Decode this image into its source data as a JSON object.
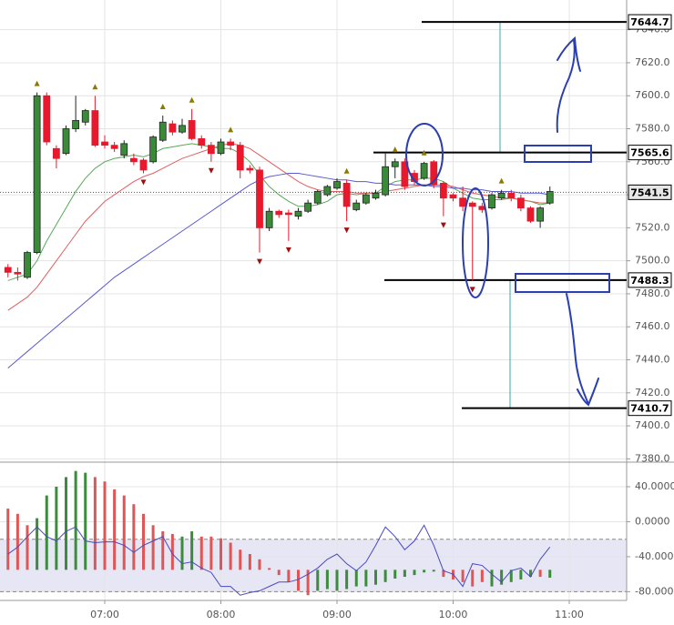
{
  "chart_data": {
    "type": "candlestick",
    "categories": [
      null,
      null,
      null,
      null,
      null,
      null,
      null,
      null,
      null,
      null,
      "07:00",
      null,
      null,
      null,
      null,
      null,
      null,
      null,
      null,
      null,
      null,
      null,
      "08:00",
      null,
      null,
      null,
      null,
      null,
      null,
      null,
      null,
      null,
      null,
      null,
      "09:00",
      null,
      null,
      null,
      null,
      null,
      null,
      null,
      null,
      null,
      null,
      null,
      "10:00",
      null,
      null,
      null,
      null,
      null,
      null,
      null,
      null,
      null,
      null,
      null,
      "11:00"
    ],
    "open": [
      7496,
      7493,
      7490,
      7505,
      7600,
      7568,
      7565,
      7580,
      7584,
      7591,
      7572,
      7570,
      7564,
      7562,
      7561,
      7560,
      7573,
      7583,
      7578,
      7585,
      7574,
      7570,
      7565,
      7572,
      7570,
      7556,
      7555,
      7520,
      7530,
      7529,
      7527,
      7530,
      7535,
      7540,
      7544,
      7547,
      7531,
      7535,
      7538,
      7540,
      7557,
      7560,
      7553,
      7550,
      7560,
      7547,
      7540,
      7538,
      7535,
      7533,
      7532,
      7538,
      7541,
      7538,
      7532,
      7524,
      7535,
      null,
      null
    ],
    "high": [
      7498,
      7496,
      7506,
      7602,
      7602,
      7570,
      7582,
      7600,
      7592,
      7600,
      7576,
      7572,
      7573,
      7565,
      7562,
      7576,
      7588,
      7585,
      7586,
      7592,
      7576,
      7572,
      7574,
      7574,
      7572,
      7558,
      7557,
      7532,
      7531,
      7531,
      7532,
      7537,
      7543,
      7546,
      7550,
      7549,
      7537,
      7541,
      7543,
      7565,
      7562,
      7562,
      7555,
      7560,
      7561,
      7548,
      7541,
      7545,
      7536,
      7535,
      7541,
      7543,
      7543,
      7540,
      7533,
      7533,
      7545,
      null,
      null
    ],
    "low": [
      7490,
      7488,
      7489,
      7504,
      7570,
      7556,
      7564,
      7578,
      7582,
      7569,
      7568,
      7566,
      7562,
      7558,
      7553,
      7559,
      7572,
      7576,
      7577,
      7573,
      7568,
      7560,
      7564,
      7567,
      7550,
      7553,
      7505,
      7518,
      7526,
      7512,
      7525,
      7529,
      7534,
      7539,
      7543,
      7524,
      7530,
      7534,
      7537,
      7539,
      7550,
      7543,
      7546,
      7549,
      7544,
      7527,
      7536,
      7530,
      7488,
      7529,
      7531,
      7537,
      7536,
      7530,
      7523,
      7520,
      7534,
      null,
      null
    ],
    "close": [
      7493,
      7492,
      7505,
      7600,
      7572,
      7562,
      7580,
      7585,
      7591,
      7570,
      7570,
      7568,
      7571,
      7560,
      7555,
      7575,
      7584,
      7578,
      7582,
      7574,
      7570,
      7565,
      7572,
      7570,
      7555,
      7555,
      7520,
      7530,
      7528,
      7528,
      7530,
      7535,
      7542,
      7545,
      7548,
      7533,
      7535,
      7540,
      7541,
      7557,
      7560,
      7545,
      7548,
      7559,
      7546,
      7538,
      7538,
      7533,
      7533,
      7531,
      7540,
      7541,
      7538,
      7532,
      7524,
      7532,
      7542,
      null,
      null
    ],
    "up_color": "#3a8a3a",
    "down_color": "#e8192c",
    "fractal_up": [
      3,
      9,
      16,
      19,
      23,
      35,
      40,
      43,
      51
    ],
    "fractal_down": [
      14,
      21,
      26,
      29,
      35,
      45,
      48
    ],
    "series": [
      {
        "color": "#5aa85a",
        "values": [
          7488,
          7490,
          7492,
          7500,
          7512,
          7522,
          7532,
          7542,
          7550,
          7556,
          7560,
          7562,
          7563,
          7564,
          7563,
          7565,
          7568,
          7569,
          7570,
          7571,
          7570,
          7569,
          7568,
          7568,
          7565,
          7560,
          7552,
          7545,
          7540,
          7536,
          7533,
          7533,
          7534,
          7536,
          7540,
          7541,
          7540,
          7541,
          7541,
          7545,
          7548,
          7549,
          7549,
          7550,
          7550,
          7548,
          7544,
          7541,
          7538,
          7537,
          7537,
          7537,
          7538,
          7537,
          7536,
          7534,
          7535,
          null,
          null
        ]
      },
      {
        "color": "#e06060",
        "values": [
          7470,
          7474,
          7478,
          7484,
          7492,
          7500,
          7508,
          7516,
          7524,
          7530,
          7536,
          7540,
          7544,
          7548,
          7551,
          7553,
          7556,
          7559,
          7562,
          7564,
          7566,
          7568,
          7570,
          7571,
          7570,
          7568,
          7564,
          7560,
          7556,
          7552,
          7548,
          7545,
          7543,
          7542,
          7542,
          7542,
          7541,
          7541,
          7541,
          7542,
          7543,
          7544,
          7545,
          7546,
          7546,
          7546,
          7545,
          7543,
          7541,
          7540,
          7539,
          7538,
          7538,
          7537,
          7536,
          7535,
          7535,
          null,
          null
        ]
      },
      {
        "color": "#5a5ad0",
        "values": [
          7435,
          7440,
          7445,
          7450,
          7455,
          7460,
          7465,
          7470,
          7475,
          7480,
          7485,
          7490,
          7494,
          7498,
          7502,
          7506,
          7510,
          7514,
          7518,
          7522,
          7526,
          7530,
          7534,
          7538,
          7542,
          7546,
          7549,
          7551,
          7552,
          7553,
          7553,
          7552,
          7551,
          7550,
          7549,
          7549,
          7548,
          7548,
          7547,
          7547,
          7546,
          7546,
          7546,
          7546,
          7545,
          7545,
          7544,
          7544,
          7543,
          7543,
          7542,
          7542,
          7542,
          7541,
          7541,
          7541,
          7540,
          null,
          null
        ]
      }
    ],
    "ylim": [
      7378,
      7658
    ],
    "yticks": [
      {
        "value": 7380,
        "label": "7380.0"
      },
      {
        "value": 7400,
        "label": "7400.0"
      },
      {
        "value": 7420,
        "label": "7420.0"
      },
      {
        "value": 7440,
        "label": "7440.0"
      },
      {
        "value": 7460,
        "label": "7460.0"
      },
      {
        "value": 7480,
        "label": "7480.0"
      },
      {
        "value": 7500,
        "label": "7500.0"
      },
      {
        "value": 7520,
        "label": "7520.0"
      },
      {
        "value": 7540,
        "label": "7540.0"
      },
      {
        "value": 7560,
        "label": "7560.0"
      },
      {
        "value": 7580,
        "label": "7580.0"
      },
      {
        "value": 7600,
        "label": "7600.0"
      },
      {
        "value": 7620,
        "label": "7620.0"
      },
      {
        "value": 7640,
        "label": "7640.0"
      }
    ],
    "grid": true,
    "levels": [
      7644.7,
      7565.6,
      7488.3,
      7410.7
    ],
    "current_price": 7541.5,
    "indicator": {
      "ylim": [
        -90,
        66
      ],
      "yticks": [
        {
          "value": 40,
          "label": "40.0000"
        },
        {
          "value": 0,
          "label": "0.0000"
        },
        {
          "value": -40,
          "label": "-40.0000"
        },
        {
          "value": -80,
          "label": "-80.0000"
        }
      ],
      "band": [
        -80,
        -20
      ],
      "histogram": {
        "base": -55,
        "values": [
          15,
          9,
          -4,
          4,
          30,
          40,
          51,
          58,
          56,
          51,
          46,
          37,
          30,
          20,
          9,
          -4,
          -11,
          -14,
          -17,
          -11,
          -17,
          -17,
          -19,
          -24,
          -32,
          -37,
          -43,
          -53,
          -61,
          -69,
          -79,
          -84,
          -79,
          -77,
          -79,
          -77,
          -74,
          -74,
          -72,
          -69,
          -65,
          -63,
          -61,
          -58,
          -57,
          -63,
          -66,
          -69,
          -74,
          -69,
          -74,
          -72,
          -69,
          -66,
          -63,
          -63,
          -64,
          null,
          null
        ],
        "colors": [
          "#e05555",
          "#e05555",
          "#e05555",
          "#3d8b3d",
          "#3d8b3d",
          "#3d8b3d",
          "#3d8b3d",
          "#3d8b3d",
          "#3d8b3d",
          "#e05555",
          "#e05555",
          "#e05555",
          "#e05555",
          "#e05555",
          "#e05555",
          "#e05555",
          "#e05555",
          "#e05555",
          "#3d8b3d",
          "#3d8b3d",
          "#e05555",
          "#e05555",
          "#e05555",
          "#e05555",
          "#e05555",
          "#e05555",
          "#e05555",
          "#e05555",
          "#e05555",
          "#e05555",
          "#e05555",
          "#e05555",
          "#3d8b3d",
          "#3d8b3d",
          "#3d8b3d",
          "#3d8b3d",
          "#3d8b3d",
          "#3d8b3d",
          "#3d8b3d",
          "#3d8b3d",
          "#3d8b3d",
          "#3d8b3d",
          "#3d8b3d",
          "#3d8b3d",
          "#3d8b3d",
          "#e05555",
          "#e05555",
          "#e05555",
          "#e05555",
          "#e05555",
          "#3d8b3d",
          "#3d8b3d",
          "#3d8b3d",
          "#3d8b3d",
          "#3d8b3d",
          "#e05555",
          "#3d8b3d",
          null,
          null
        ]
      },
      "line": {
        "color": "#4a4ac0",
        "values": [
          -37,
          -29,
          -17,
          -6,
          -17,
          -22,
          -11,
          -6,
          -22,
          -24,
          -23,
          -23,
          -27,
          -35,
          -27,
          -22,
          -17,
          -37,
          -48,
          -46,
          -53,
          -58,
          -74,
          -74,
          -84,
          -81,
          -79,
          -74,
          -69,
          -69,
          -66,
          -60,
          -53,
          -43,
          -37,
          -48,
          -56,
          -46,
          -27,
          -6,
          -17,
          -32,
          -22,
          -4,
          -27,
          -56,
          -60,
          -74,
          -48,
          -50,
          -60,
          -69,
          -56,
          -53,
          -63,
          -43,
          -29,
          null,
          null
        ]
      }
    }
  }
}
